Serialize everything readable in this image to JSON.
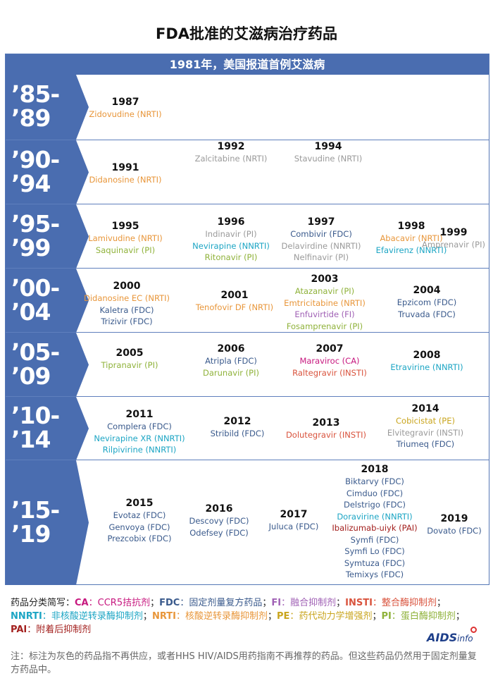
{
  "title": "FDA批准的艾滋病治疗药品",
  "banner": "1981年，美国报道首例艾滋病",
  "colors": {
    "nrti": "#e8963a",
    "nnrti": "#1ca5c4",
    "pi": "#8fb23a",
    "fdc": "#3a5a8c",
    "fi": "#a061b5",
    "insti": "#d9533d",
    "ca": "#c7187f",
    "pe": "#c9a51e",
    "pai": "#a3201e",
    "gray": "#9a9a9a",
    "band": "#4a6db0"
  },
  "eras": [
    {
      "label": "’85-’89",
      "l1": "’85-",
      "l2": "’89",
      "groups": [
        {
          "year": "1987",
          "drugs": [
            {
              "n": "Zidovudine (NRTI)",
              "c": "nrti"
            }
          ]
        }
      ]
    },
    {
      "label": "’90-’94",
      "l1": "’90-",
      "l2": "’94",
      "groups": [
        {
          "year": "1991",
          "drugs": [
            {
              "n": "Didanosine (NRTI)",
              "c": "nrti"
            }
          ]
        },
        {
          "year": "1992",
          "drugs": [
            {
              "n": "Zalcitabine (NRTI)",
              "c": "gray"
            }
          ]
        },
        {
          "year": "1994",
          "drugs": [
            {
              "n": "Stavudine (NRTI)",
              "c": "gray"
            }
          ]
        }
      ]
    },
    {
      "label": "’95-’99",
      "l1": "’95-",
      "l2": "’99",
      "groups": [
        {
          "year": "1995",
          "drugs": [
            {
              "n": "Lamivudine (NRTI)",
              "c": "nrti"
            },
            {
              "n": "Saquinavir (PI)",
              "c": "pi"
            }
          ]
        },
        {
          "year": "1996",
          "drugs": [
            {
              "n": "Indinavir (PI)",
              "c": "gray"
            },
            {
              "n": "Nevirapine (NNRTI)",
              "c": "nnrti"
            },
            {
              "n": "Ritonavir (PI)",
              "c": "pi"
            }
          ]
        },
        {
          "year": "1997",
          "drugs": [
            {
              "n": "Combivir (FDC)",
              "c": "fdc"
            },
            {
              "n": "Delavirdine (NNRTI)",
              "c": "gray"
            },
            {
              "n": "Nelfinavir (PI)",
              "c": "gray"
            }
          ]
        },
        {
          "year": "1998",
          "drugs": [
            {
              "n": "Abacavir (NRTI)",
              "c": "nrti"
            },
            {
              "n": "Efavirenz (NNRTI)",
              "c": "nnrti"
            }
          ]
        },
        {
          "year": "1999",
          "drugs": [
            {
              "n": "Amprenavir (PI)",
              "c": "gray"
            }
          ]
        }
      ]
    },
    {
      "label": "’00-’04",
      "l1": "’00-",
      "l2": "’04",
      "groups": [
        {
          "year": "2000",
          "drugs": [
            {
              "n": "Didanosine EC (NRTI)",
              "c": "nrti"
            },
            {
              "n": "Kaletra (FDC)",
              "c": "fdc"
            },
            {
              "n": "Trizivir (FDC)",
              "c": "fdc"
            }
          ]
        },
        {
          "year": "2001",
          "drugs": [
            {
              "n": "Tenofovir DF (NRTI)",
              "c": "nrti"
            }
          ]
        },
        {
          "year": "2003",
          "drugs": [
            {
              "n": "Atazanavir (PI)",
              "c": "pi"
            },
            {
              "n": "Emtricitabine (NRTI)",
              "c": "nrti"
            },
            {
              "n": "Enfuvirtide (FI)",
              "c": "fi"
            },
            {
              "n": "Fosamprenavir (PI)",
              "c": "pi"
            }
          ]
        },
        {
          "year": "2004",
          "drugs": [
            {
              "n": "Epzicom (FDC)",
              "c": "fdc"
            },
            {
              "n": "Truvada (FDC)",
              "c": "fdc"
            }
          ]
        }
      ]
    },
    {
      "label": "’05-’09",
      "l1": "’05-",
      "l2": "’09",
      "groups": [
        {
          "year": "2005",
          "drugs": [
            {
              "n": "Tipranavir (PI)",
              "c": "pi"
            }
          ]
        },
        {
          "year": "2006",
          "drugs": [
            {
              "n": "Atripla (FDC)",
              "c": "fdc"
            },
            {
              "n": "Darunavir (PI)",
              "c": "pi"
            }
          ]
        },
        {
          "year": "2007",
          "drugs": [
            {
              "n": "Maraviroc (CA)",
              "c": "ca"
            },
            {
              "n": "Raltegravir (INSTI)",
              "c": "insti"
            }
          ]
        },
        {
          "year": "2008",
          "drugs": [
            {
              "n": "Etravirine (NNRTI)",
              "c": "nnrti"
            }
          ]
        }
      ]
    },
    {
      "label": "’10-’14",
      "l1": "’10-",
      "l2": "’14",
      "groups": [
        {
          "year": "2011",
          "drugs": [
            {
              "n": "Complera (FDC)",
              "c": "fdc"
            },
            {
              "n": "Nevirapine XR (NNRTI)",
              "c": "nnrti"
            },
            {
              "n": "Rilpivirine (NNRTI)",
              "c": "nnrti"
            }
          ]
        },
        {
          "year": "2012",
          "drugs": [
            {
              "n": "Stribild (FDC)",
              "c": "fdc"
            }
          ]
        },
        {
          "year": "2013",
          "drugs": [
            {
              "n": "Dolutegravir (INSTI)",
              "c": "insti"
            }
          ]
        },
        {
          "year": "2014",
          "drugs": [
            {
              "n": "Cobicistat (PE)",
              "c": "pe"
            },
            {
              "n": "Elvitegravir (INSTI)",
              "c": "gray"
            },
            {
              "n": "Triumeq (FDC)",
              "c": "fdc"
            }
          ]
        }
      ]
    },
    {
      "label": "’15-’19",
      "l1": "’15-",
      "l2": "’19",
      "groups": [
        {
          "year": "2015",
          "drugs": [
            {
              "n": "Evotaz (FDC)",
              "c": "fdc"
            },
            {
              "n": "Genvoya (FDC)",
              "c": "fdc"
            },
            {
              "n": "Prezcobix (FDC)",
              "c": "fdc"
            }
          ]
        },
        {
          "year": "2016",
          "drugs": [
            {
              "n": "Descovy (FDC)",
              "c": "fdc"
            },
            {
              "n": "Odefsey (FDC)",
              "c": "fdc"
            }
          ]
        },
        {
          "year": "2017",
          "drugs": [
            {
              "n": "Juluca (FDC)",
              "c": "fdc"
            }
          ]
        },
        {
          "year": "2018",
          "drugs": [
            {
              "n": "Biktarvy (FDC)",
              "c": "fdc"
            },
            {
              "n": "Cimduo (FDC)",
              "c": "fdc"
            },
            {
              "n": "Delstrigo (FDC)",
              "c": "fdc"
            },
            {
              "n": "Doravirine (NNRTI)",
              "c": "nnrti"
            },
            {
              "n": "Ibalizumab-uiyk (PAI)",
              "c": "pai"
            },
            {
              "n": "Symfi (FDC)",
              "c": "fdc"
            },
            {
              "n": "Symfi Lo (FDC)",
              "c": "fdc"
            },
            {
              "n": "Symtuza (FDC)",
              "c": "fdc"
            },
            {
              "n": "Temixys (FDC)",
              "c": "fdc"
            }
          ]
        },
        {
          "year": "2019",
          "drugs": [
            {
              "n": "Dovato (FDC)",
              "c": "fdc"
            }
          ]
        }
      ]
    }
  ],
  "legend": {
    "intro": "药品分类简写：",
    "items": [
      {
        "abbr": "CA",
        "text": "CCR5拮抗剂",
        "c": "ca"
      },
      {
        "abbr": "FDC",
        "text": "固定剂量复方药品",
        "c": "fdc"
      },
      {
        "abbr": "FI",
        "text": "融合抑制剂",
        "c": "fi"
      },
      {
        "abbr": "INSTI",
        "text": "整合酶抑制剂",
        "c": "insti"
      },
      {
        "abbr": "NNRTI",
        "text": "非核酸逆转录酶抑制剂",
        "c": "nnrti"
      },
      {
        "abbr": "NRTI",
        "text": "核酸逆转录酶抑制剂",
        "c": "nrti"
      },
      {
        "abbr": "PE",
        "text": "药代动力学增强剂",
        "c": "pe"
      },
      {
        "abbr": "PI",
        "text": "蛋白酶抑制剂",
        "c": "pi"
      },
      {
        "abbr": "PAI",
        "text": "附着后抑制剂",
        "c": "pai"
      }
    ]
  },
  "note": "注：标注为灰色的药品指不再供应，或者HHS HIV/AIDS用药指南不再推荐的药品。但这些药品仍然用于固定剂量复方药品中。",
  "logo": {
    "main": "AIDS",
    "sub": "info"
  }
}
